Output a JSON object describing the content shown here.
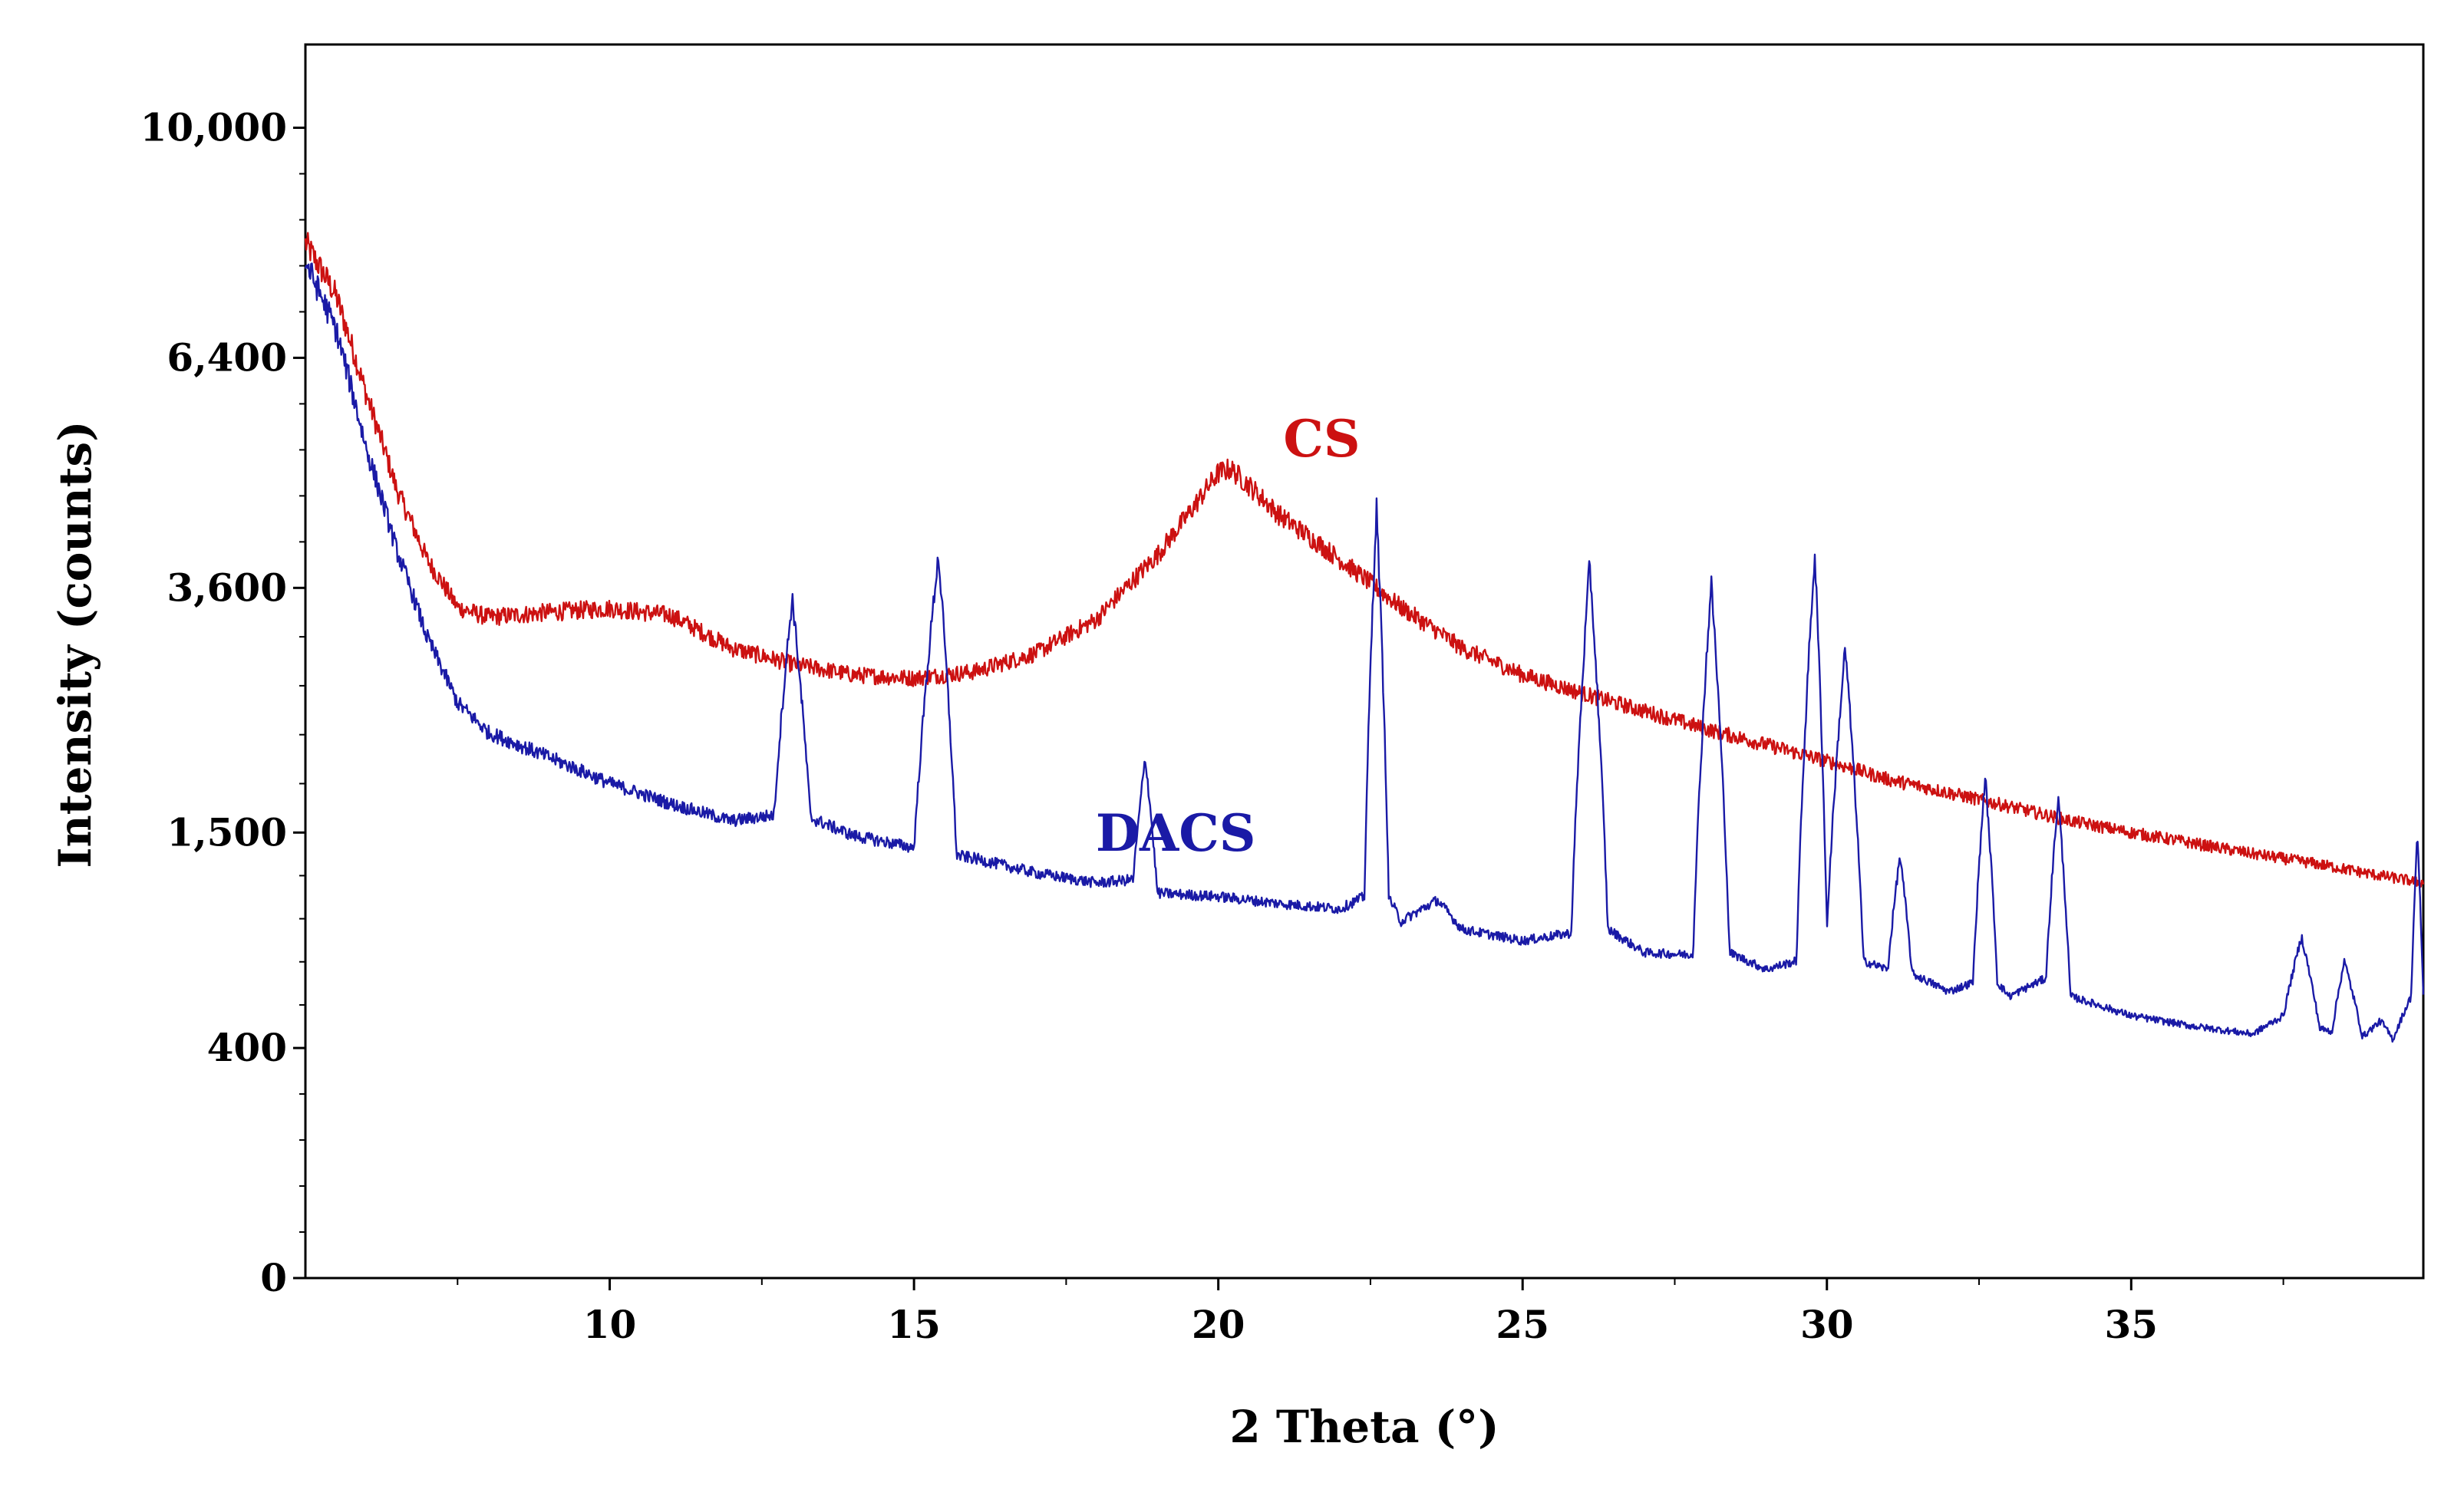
{
  "chart_data": {
    "type": "line",
    "title": "",
    "xlabel": "2 Theta (°)",
    "ylabel": "Intensity (counts)",
    "xlim": [
      5,
      39.8
    ],
    "ylim_display": [
      0,
      11500
    ],
    "y_scale": "sqrt",
    "grid": false,
    "legend": "inline labels next to curves",
    "x_ticks": [
      10,
      15,
      20,
      25,
      30,
      35
    ],
    "x_tick_labels": [
      "10",
      "15",
      "20",
      "25",
      "30",
      "35"
    ],
    "y_ticks": [
      0,
      400,
      1500,
      3600,
      6400,
      10000
    ],
    "y_tick_labels": [
      "0",
      "400",
      "1,500",
      "3,600",
      "6,400",
      "10,000"
    ],
    "series": [
      {
        "name": "CS",
        "color": "#cc1111",
        "label_text": "CS",
        "label_at": [
          21.7,
          5100
        ],
        "x": [
          5.0,
          5.5,
          6.0,
          6.5,
          7.0,
          7.5,
          8.0,
          9.0,
          10.0,
          11.0,
          12.0,
          13.0,
          14.0,
          15.0,
          16.0,
          17.0,
          18.0,
          19.0,
          19.5,
          20.0,
          20.2,
          20.5,
          21.0,
          22.0,
          23.0,
          24.0,
          25.0,
          26.0,
          27.0,
          28.0,
          29.0,
          30.0,
          31.0,
          32.0,
          33.0,
          34.0,
          35.0,
          36.0,
          37.0,
          38.0,
          39.0,
          39.8
        ],
        "y": [
          8100,
          7300,
          5900,
          4700,
          3900,
          3400,
          3300,
          3350,
          3390,
          3320,
          3000,
          2850,
          2750,
          2720,
          2780,
          2950,
          3280,
          3950,
          4400,
          4900,
          4950,
          4750,
          4400,
          3900,
          3400,
          3000,
          2750,
          2580,
          2430,
          2280,
          2150,
          2020,
          1880,
          1780,
          1680,
          1580,
          1500,
          1430,
          1360,
          1300,
          1230,
          1180
        ]
      },
      {
        "name": "DACS",
        "color": "#1a1aa6",
        "label_text": "DACS",
        "label_at": [
          19.3,
          1380
        ],
        "x": [
          5.0,
          5.5,
          6.0,
          6.5,
          7.0,
          7.5,
          8.0,
          9.0,
          10.0,
          11.0,
          12.0,
          12.7,
          13.0,
          13.3,
          14.0,
          15.0,
          15.4,
          15.7,
          16.0,
          17.0,
          18.0,
          18.6,
          18.8,
          19.0,
          20.0,
          21.0,
          22.0,
          22.4,
          22.6,
          22.8,
          23.0,
          23.6,
          24.0,
          25.0,
          25.8,
          26.1,
          26.4,
          27.0,
          27.8,
          28.1,
          28.4,
          29.0,
          29.5,
          29.8,
          30.0,
          30.3,
          30.6,
          31.0,
          31.2,
          31.4,
          32.0,
          32.4,
          32.6,
          32.8,
          33.0,
          33.6,
          33.8,
          34.0,
          35.0,
          36.0,
          37.0,
          37.5,
          37.8,
          38.1,
          38.3,
          38.5,
          38.8,
          39.1,
          39.3,
          39.6,
          39.7,
          39.8
        ],
        "y": [
          7800,
          6800,
          5200,
          4000,
          3100,
          2500,
          2250,
          2050,
          1850,
          1700,
          1580,
          1620,
          3500,
          1600,
          1480,
          1400,
          3950,
          1350,
          1330,
          1240,
          1180,
          1200,
          2050,
          1120,
          1100,
          1060,
          1030,
          1100,
          4500,
          1100,
          960,
          1080,
          920,
          860,
          900,
          3850,
          920,
          800,
          790,
          3650,
          800,
          720,
          760,
          3950,
          920,
          3000,
          760,
          720,
          1350,
          700,
          620,
          660,
          1900,
          660,
          600,
          680,
          1750,
          600,
          520,
          480,
          450,
          520,
          880,
          470,
          460,
          760,
          440,
          500,
          430,
          600,
          1480,
          600
        ]
      }
    ]
  }
}
